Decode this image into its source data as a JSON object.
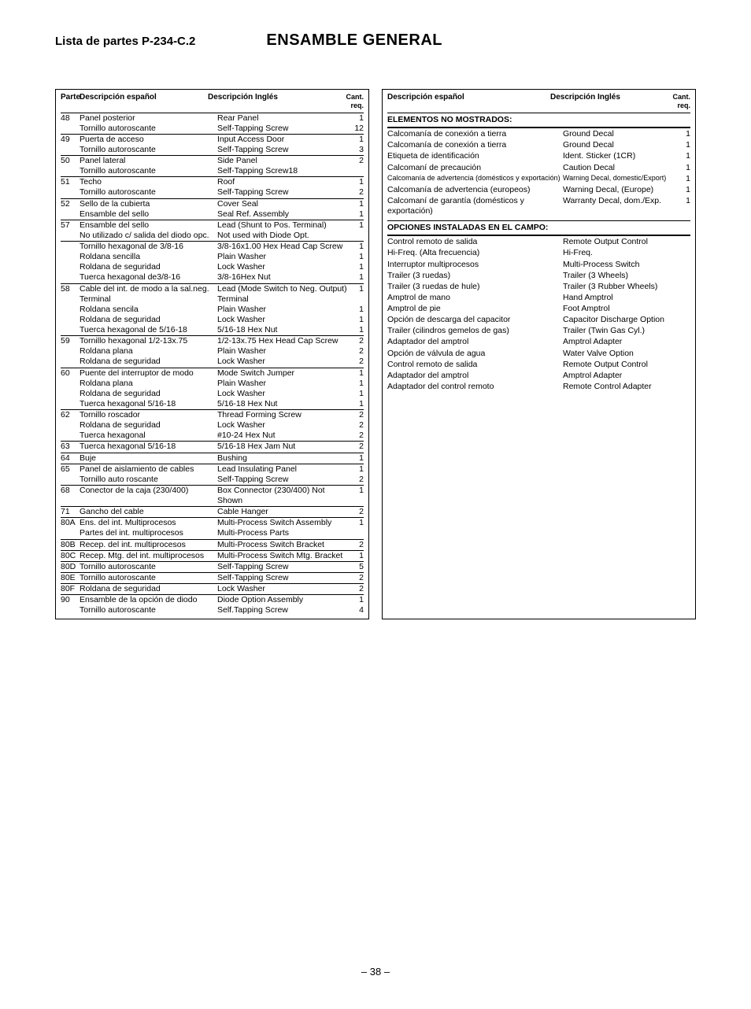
{
  "header": {
    "parts_list": "Lista de partes P-234-C.2",
    "title": "ENSAMBLE GENERAL"
  },
  "left_headers": {
    "part": "Parte",
    "es": "Descripción español",
    "en": "Descripción Inglés",
    "qty": "Cant.",
    "req": "req."
  },
  "left_rows": [
    {
      "p": "48",
      "es": "Panel posterior",
      "en": "Rear Panel",
      "q": "1",
      "line": true
    },
    {
      "p": "",
      "es": "Tornillo autoroscante",
      "en": "Self-Tapping Screw",
      "q": "12",
      "line": false
    },
    {
      "p": "49",
      "es": "Puerta de acceso",
      "en": "Input Access Door",
      "q": "1",
      "line": true
    },
    {
      "p": "",
      "es": "Tornillo autoroscante",
      "en": "Self-Tapping Screw",
      "q": "3",
      "line": false
    },
    {
      "p": "50",
      "es": "Panel lateral",
      "en": "Side Panel",
      "q": "2",
      "line": true
    },
    {
      "p": "",
      "es": "Tornillo autoroscante",
      "en": "Self-Tapping Screw18",
      "q": "",
      "line": false
    },
    {
      "p": "51",
      "es": "Techo",
      "en": "Roof",
      "q": "1",
      "line": true
    },
    {
      "p": "",
      "es": "Tornillo autoroscante",
      "en": "Self-Tapping Screw",
      "q": "2",
      "line": false
    },
    {
      "p": "52",
      "es": "Sello de la cubierta",
      "en": "Cover Seal",
      "q": "1",
      "line": true
    },
    {
      "p": "",
      "es": "Ensamble del sello",
      "en": "Seal Ref. Assembly",
      "q": "1",
      "line": false
    },
    {
      "p": "57",
      "es": "Ensamble del sello",
      "en": "Lead (Shunt to Pos. Terminal)",
      "q": "1",
      "line": true
    },
    {
      "p": "",
      "es": "No utilizado c/ salida del diodo opc.",
      "en": "Not used with Diode Opt.",
      "q": "",
      "line": false
    },
    {
      "p": "",
      "es": "Tornillo hexagonal de 3/8-16",
      "en": "3/8-16x1.00 Hex Head Cap Screw",
      "q": "1",
      "line": true
    },
    {
      "p": "",
      "es": "Roldana sencilla",
      "en": "Plain Washer",
      "q": "1",
      "line": false
    },
    {
      "p": "",
      "es": "Roldana de seguridad",
      "en": "Lock Washer",
      "q": "1",
      "line": false
    },
    {
      "p": "",
      "es": "Tuerca hexagonal de3/8-16",
      "en": "3/8-16Hex Nut",
      "q": "1",
      "line": false
    },
    {
      "p": "58",
      "es": "Cable del int. de modo a la sal.neg.",
      "en": "Lead (Mode Switch to Neg. Output)",
      "q": "1",
      "line": true
    },
    {
      "p": "",
      "es": "Terminal",
      "en": "Terminal",
      "q": "",
      "line": false
    },
    {
      "p": "",
      "es": "Roldana sencila",
      "en": "Plain Washer",
      "q": "1",
      "line": false
    },
    {
      "p": "",
      "es": "Roldana de seguridad",
      "en": "Lock Washer",
      "q": "1",
      "line": false
    },
    {
      "p": "",
      "es": "Tuerca hexagonal de 5/16-18",
      "en": "5/16-18 Hex Nut",
      "q": "1",
      "line": false
    },
    {
      "p": "59",
      "es": "Tornillo hexagonal 1/2-13x.75",
      "en": "1/2-13x.75 Hex Head Cap Screw",
      "q": "2",
      "line": true
    },
    {
      "p": "",
      "es": "Roldana plana",
      "en": "Plain Washer",
      "q": "2",
      "line": false
    },
    {
      "p": "",
      "es": "Roldana de seguridad",
      "en": "Lock Washer",
      "q": "2",
      "line": false
    },
    {
      "p": "60",
      "es": "Puente del interruptor de modo",
      "en": "Mode Switch Jumper",
      "q": "1",
      "line": true
    },
    {
      "p": "",
      "es": "Roldana plana",
      "en": "Plain Washer",
      "q": "1",
      "line": false
    },
    {
      "p": "",
      "es": "Roldana de seguridad",
      "en": "Lock Washer",
      "q": "1",
      "line": false
    },
    {
      "p": "",
      "es": "Tuerca hexagonal 5/16-18",
      "en": "5/16-18 Hex Nut",
      "q": "1",
      "line": false
    },
    {
      "p": "62",
      "es": "Tornillo roscador",
      "en": "Thread Forming Screw",
      "q": "2",
      "line": true
    },
    {
      "p": "",
      "es": "Roldana de seguridad",
      "en": "Lock Washer",
      "q": "2",
      "line": false
    },
    {
      "p": "",
      "es": "Tuerca hexagonal",
      "en": "#10-24 Hex Nut",
      "q": "2",
      "line": false
    },
    {
      "p": "63",
      "es": "Tuerca hexagonal 5/16-18",
      "en": "5/16-18 Hex Jam Nut",
      "q": "2",
      "line": true
    },
    {
      "p": "64",
      "es": "Buje",
      "en": "Bushing",
      "q": "1",
      "line": true
    },
    {
      "p": "65",
      "es": "Panel de aislamiento de cables",
      "en": "Lead Insulating Panel",
      "q": "1",
      "line": true
    },
    {
      "p": "",
      "es": "Tornillo auto roscante",
      "en": "Self-Tapping Screw",
      "q": "2",
      "line": false
    },
    {
      "p": "68",
      "es": "Conector de la caja (230/400)",
      "en": "Box Connector (230/400) Not Shown",
      "q": "1",
      "line": true
    },
    {
      "p": "71",
      "es": "Gancho del cable",
      "en": "Cable Hanger",
      "q": "2",
      "line": true
    },
    {
      "p": "80A",
      "es": "Ens. del int. Multiprocesos",
      "en": "Multi-Process Switch Assembly",
      "q": "1",
      "line": true
    },
    {
      "p": "",
      "es": "Partes del int. multiprocesos",
      "en": "Multi-Process Parts",
      "q": "",
      "line": false
    },
    {
      "p": "80B",
      "es": "Recep. del int. multiprocesos",
      "en": "Multi-Process Switch Bracket",
      "q": "2",
      "line": true
    },
    {
      "p": "80C",
      "es": "Recep. Mtg. del int. multiprocesos",
      "en": "Multi-Process Switch Mtg. Bracket",
      "q": "1",
      "line": true
    },
    {
      "p": "80D",
      "es": "Tornillo autoroscante",
      "en": "Self-Tapping Screw",
      "q": "5",
      "line": true
    },
    {
      "p": "80E",
      "es": "Tornillo autoroscante",
      "en": "Self-Tapping Screw",
      "q": "2",
      "line": true
    },
    {
      "p": "80F",
      "es": "Roldana de seguridad",
      "en": "Lock Washer",
      "q": "2",
      "line": true
    },
    {
      "p": "90",
      "es": "Ensamble de la opción de diodo",
      "en": "Diode Option Assembly",
      "q": "1",
      "line": true
    },
    {
      "p": "",
      "es": "Tornillo autoroscante",
      "en": "Self.Tapping Screw",
      "q": "4",
      "line": false
    }
  ],
  "right_headers": {
    "es": "Descripción español",
    "en": "Descripción Inglés",
    "qty": "Cant.",
    "req": "req."
  },
  "right_section1_title": "ELEMENTOS NO MOSTRADOS:",
  "right_section1": [
    {
      "es": "Calcomanía de conexión a tierra",
      "en": "Ground Decal",
      "q": "1"
    },
    {
      "es": "Calcomanía de conexión a tierra",
      "en": "Ground Decal",
      "q": "1"
    },
    {
      "es": "Etiqueta de identificación",
      "en": "Ident. Sticker (1CR)",
      "q": "1"
    },
    {
      "es": "Calcomaní de precaución",
      "en": "Caution Decal",
      "q": "1"
    },
    {
      "es": "Calcomanía de advertencia (domésticos y exportación)",
      "en": "Warning Decal, domestic/Export)",
      "q": "1",
      "small": true
    },
    {
      "es": "Calcomanía de advertencia (europeos)",
      "en": "Warning Decal, (Europe)",
      "q": "1"
    },
    {
      "es": "Calcomaní de garantía (domésticos y exportación)",
      "en": "Warranty Decal, dom./Exp.",
      "q": "1"
    }
  ],
  "right_section2_title": "OPCIONES INSTALADAS EN EL CAMPO:",
  "right_section2": [
    {
      "es": "Control remoto de salida",
      "en": "Remote Output Control"
    },
    {
      "es": "Hi-Freq. (Alta frecuencia)",
      "en": "Hi-Freq."
    },
    {
      "es": "Interruptor multiprocesos",
      "en": "Multi-Process Switch"
    },
    {
      "es": "Trailer (3 ruedas)",
      "en": "Trailer (3 Wheels)"
    },
    {
      "es": "Trailer (3 ruedas de hule)",
      "en": "Trailer (3 Rubber Wheels)"
    },
    {
      "es": "Amptrol de mano",
      "en": "Hand Amptrol"
    },
    {
      "es": "Amptrol de pie",
      "en": "Foot Amptrol"
    },
    {
      "es": "Opción de descarga del capacitor",
      "en": "Capacitor Discharge Option"
    },
    {
      "es": "Trailer (cilindros gemelos de gas)",
      "en": "Trailer (Twin Gas Cyl.)"
    },
    {
      "es": "Adaptador del amptrol",
      "en": "Amptrol Adapter"
    },
    {
      "es": "Opción de válvula de agua",
      "en": "Water Valve Option"
    },
    {
      "es": "Control remoto de salida",
      "en": "Remote Output Control"
    },
    {
      "es": "Adaptador del amptrol",
      "en": "Amptrol Adapter"
    },
    {
      "es": "Adaptador del control remoto",
      "en": "Remote Control Adapter"
    }
  ],
  "footer": "– 38 –"
}
